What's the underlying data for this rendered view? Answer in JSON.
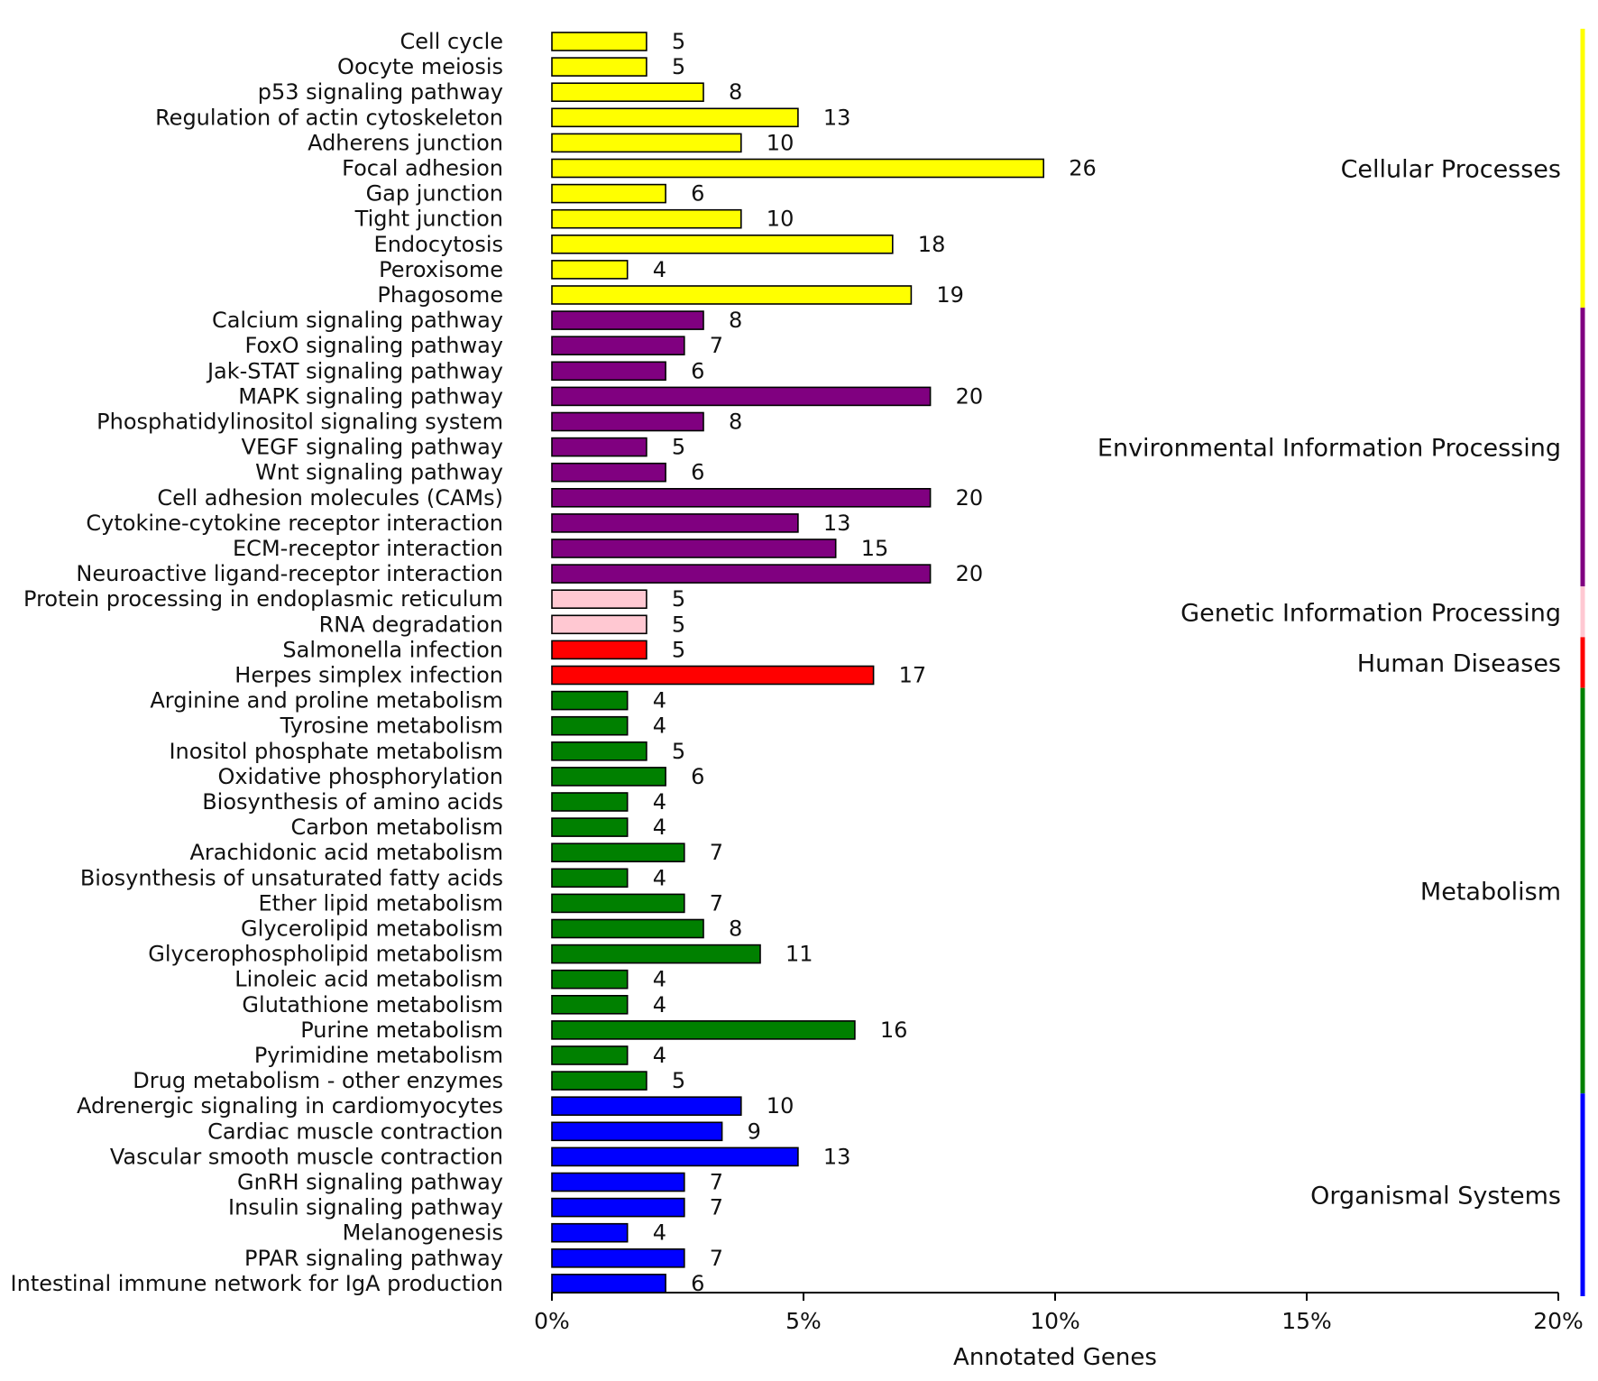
{
  "chart_data": {
    "type": "bar",
    "orientation": "horizontal",
    "title": "",
    "xlabel": "Annotated Genes",
    "ylabel": "",
    "xlim": [
      0,
      20
    ],
    "xticks": [
      0,
      5,
      10,
      15,
      20
    ],
    "xtick_labels": [
      "0%",
      "5%",
      "10%",
      "15%",
      "20%"
    ],
    "grid": false,
    "groups": [
      {
        "name": "Cellular Processes",
        "color": "#ffff00",
        "items": [
          {
            "label": "Cell cycle",
            "count": "5",
            "pct": 1.88
          },
          {
            "label": "Oocyte meiosis",
            "count": "5",
            "pct": 1.88
          },
          {
            "label": "p53 signaling pathway",
            "count": "8",
            "pct": 3.01
          },
          {
            "label": "Regulation of actin cytoskeleton",
            "count": "13",
            "pct": 4.89
          },
          {
            "label": "Adherens junction",
            "count": "10",
            "pct": 3.76
          },
          {
            "label": "Focal adhesion",
            "count": "26",
            "pct": 9.77
          },
          {
            "label": "Gap junction",
            "count": "6",
            "pct": 2.26
          },
          {
            "label": "Tight junction",
            "count": "10",
            "pct": 3.76
          },
          {
            "label": "Endocytosis",
            "count": "18",
            "pct": 6.77
          },
          {
            "label": "Peroxisome",
            "count": "4",
            "pct": 1.5
          },
          {
            "label": "Phagosome",
            "count": "19",
            "pct": 7.14
          }
        ]
      },
      {
        "name": "Environmental Information Processing",
        "color": "#800080",
        "items": [
          {
            "label": "Calcium signaling pathway",
            "count": "8",
            "pct": 3.01
          },
          {
            "label": "FoxO signaling pathway",
            "count": "7",
            "pct": 2.63
          },
          {
            "label": "Jak-STAT signaling pathway",
            "count": "6",
            "pct": 2.26
          },
          {
            "label": "MAPK signaling pathway",
            "count": "20",
            "pct": 7.52
          },
          {
            "label": "Phosphatidylinositol signaling system",
            "count": "8",
            "pct": 3.01
          },
          {
            "label": "VEGF signaling pathway",
            "count": "5",
            "pct": 1.88
          },
          {
            "label": "Wnt signaling pathway",
            "count": "6",
            "pct": 2.26
          },
          {
            "label": "Cell adhesion molecules (CAMs)",
            "count": "20",
            "pct": 7.52
          },
          {
            "label": "Cytokine-cytokine receptor interaction",
            "count": "13",
            "pct": 4.89
          },
          {
            "label": "ECM-receptor interaction",
            "count": "15",
            "pct": 5.64
          },
          {
            "label": "Neuroactive ligand-receptor interaction",
            "count": "20",
            "pct": 7.52
          }
        ]
      },
      {
        "name": "Genetic Information Processing",
        "color": "#ffc8d2",
        "items": [
          {
            "label": "Protein processing in endoplasmic reticulum",
            "count": "5",
            "pct": 1.88
          },
          {
            "label": "RNA degradation",
            "count": "5",
            "pct": 1.88
          }
        ]
      },
      {
        "name": "Human Diseases",
        "color": "#ff0000",
        "items": [
          {
            "label": "Salmonella infection",
            "count": "5",
            "pct": 1.88
          },
          {
            "label": "Herpes simplex infection",
            "count": "17",
            "pct": 6.39
          }
        ]
      },
      {
        "name": "Metabolism",
        "color": "#008000",
        "items": [
          {
            "label": "Arginine and proline metabolism",
            "count": "4",
            "pct": 1.5
          },
          {
            "label": "Tyrosine metabolism",
            "count": "4",
            "pct": 1.5
          },
          {
            "label": "Inositol phosphate metabolism",
            "count": "5",
            "pct": 1.88
          },
          {
            "label": "Oxidative phosphorylation",
            "count": "6",
            "pct": 2.26
          },
          {
            "label": "Biosynthesis of amino acids",
            "count": "4",
            "pct": 1.5
          },
          {
            "label": "Carbon metabolism",
            "count": "4",
            "pct": 1.5
          },
          {
            "label": "Arachidonic acid metabolism",
            "count": "7",
            "pct": 2.63
          },
          {
            "label": "Biosynthesis of unsaturated fatty acids",
            "count": "4",
            "pct": 1.5
          },
          {
            "label": "Ether lipid metabolism",
            "count": "7",
            "pct": 2.63
          },
          {
            "label": "Glycerolipid metabolism",
            "count": "8",
            "pct": 3.01
          },
          {
            "label": "Glycerophospholipid metabolism",
            "count": "11",
            "pct": 4.14
          },
          {
            "label": "Linoleic acid metabolism",
            "count": "4",
            "pct": 1.5
          },
          {
            "label": "Glutathione metabolism",
            "count": "4",
            "pct": 1.5
          },
          {
            "label": "Purine metabolism",
            "count": "16",
            "pct": 6.02
          },
          {
            "label": "Pyrimidine metabolism",
            "count": "4",
            "pct": 1.5
          },
          {
            "label": "Drug metabolism - other enzymes",
            "count": "5",
            "pct": 1.88
          }
        ]
      },
      {
        "name": "Organismal Systems",
        "color": "#0000ff",
        "items": [
          {
            "label": "Adrenergic signaling in cardiomyocytes",
            "count": "10",
            "pct": 3.76
          },
          {
            "label": "Cardiac muscle contraction",
            "count": "9",
            "pct": 3.38
          },
          {
            "label": "Vascular smooth muscle contraction",
            "count": "13",
            "pct": 4.89
          },
          {
            "label": "GnRH signaling pathway",
            "count": "7",
            "pct": 2.63
          },
          {
            "label": "Insulin signaling pathway",
            "count": "7",
            "pct": 2.63
          },
          {
            "label": "Melanogenesis",
            "count": "4",
            "pct": 1.5
          },
          {
            "label": "PPAR signaling pathway",
            "count": "7",
            "pct": 2.63
          },
          {
            "label": "Intestinal immune network for IgA production",
            "count": "6",
            "pct": 2.26
          }
        ]
      }
    ]
  }
}
